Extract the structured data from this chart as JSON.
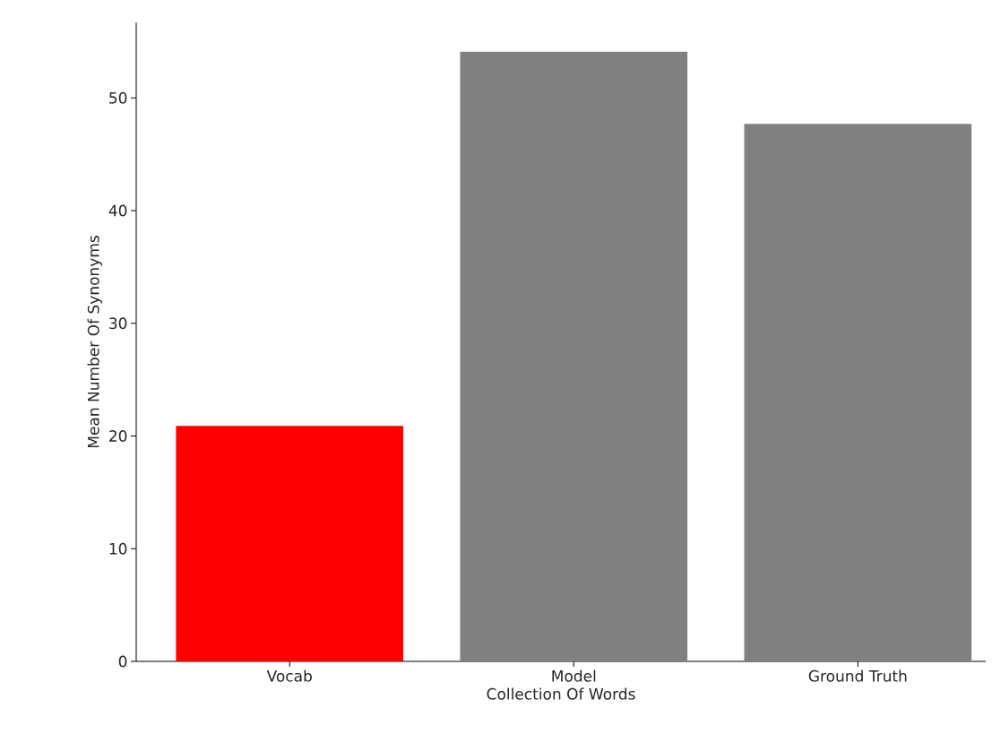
{
  "chart_data": {
    "type": "bar",
    "xlabel": "Collection Of Words",
    "ylabel": "Mean Number Of Synonyms",
    "categories": [
      "Vocab",
      "Model",
      "Ground Truth"
    ],
    "values": [
      20.9,
      54.1,
      47.7
    ],
    "colors": [
      "#ff0000",
      "#808080",
      "#808080"
    ],
    "ylim": [
      0,
      56.7
    ],
    "yticks": [
      0,
      10,
      20,
      30,
      40,
      50
    ]
  }
}
